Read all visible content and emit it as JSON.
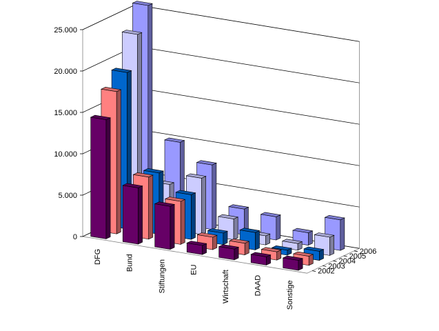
{
  "chart_data": {
    "type": "bar",
    "subtype": "3d-clustered-depth",
    "title": "",
    "xlabel": "",
    "ylabel": "",
    "categories": [
      "DFG",
      "Bund",
      "Stiftungen",
      "EU",
      "Wirtschaft",
      "DAAD",
      "Sonstige"
    ],
    "series": [
      {
        "name": "2002",
        "color": "#660066",
        "values": [
          14400,
          6800,
          5200,
          1100,
          1300,
          1000,
          1200
        ]
      },
      {
        "name": "2003",
        "color": "#FF8080",
        "values": [
          17200,
          7500,
          5200,
          1500,
          1400,
          1000,
          1100
        ]
      },
      {
        "name": "2004",
        "color": "#0066CC",
        "values": [
          18900,
          7400,
          5400,
          1400,
          2100,
          600,
          1100
        ]
      },
      {
        "name": "2005",
        "color": "#CCCCFF",
        "values": [
          22900,
          5400,
          6800,
          2500,
          1100,
          800,
          2200
        ]
      },
      {
        "name": "2006",
        "color": "#9999FF",
        "values": [
          25800,
          9900,
          7800,
          3100,
          2800,
          1500,
          3700
        ]
      }
    ],
    "ylim": [
      0,
      25000
    ],
    "yticks": [
      "0",
      "5.000",
      "10.000",
      "15.000",
      "20.000",
      "25.000"
    ],
    "ytick_values": [
      0,
      5000,
      10000,
      15000,
      20000,
      25000
    ],
    "grid": true,
    "legend": "none"
  }
}
